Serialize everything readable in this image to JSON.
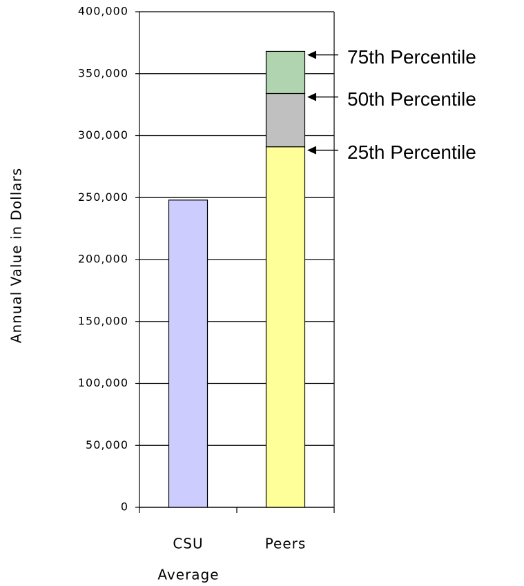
{
  "chart_data": {
    "type": "stacked_bar",
    "categories": [
      "CSU",
      "Peers"
    ],
    "xlabel": "Average",
    "ylabel": "Annual Value in Dollars",
    "series": [
      {
        "color": "#ccccff",
        "values": [
          248000,
          null
        ]
      },
      {
        "name": "25th Percentile",
        "color": "#ffff99",
        "values": [
          null,
          291000
        ]
      },
      {
        "name": "50th Percentile",
        "color": "#c0c0c0",
        "values": [
          null,
          43000
        ]
      },
      {
        "name": "75th Percentile",
        "color": "#b0d4b0",
        "values": [
          null,
          34000
        ]
      }
    ],
    "ylim": [
      0,
      400000
    ],
    "yticks": [
      0,
      {
        "value": 50000,
        "label": "50,000"
      },
      {
        "value": 100000,
        "label": "100,000"
      },
      {
        "value": 150000,
        "label": "150,000"
      },
      {
        "value": 200000,
        "label": "200,000"
      },
      {
        "value": 250000,
        "label": "250,000"
      },
      {
        "value": 300000,
        "label": "300,000"
      },
      {
        "value": 350000,
        "label": "350,000"
      },
      {
        "value": 400000,
        "label": "400,000"
      }
    ],
    "grid": true
  }
}
